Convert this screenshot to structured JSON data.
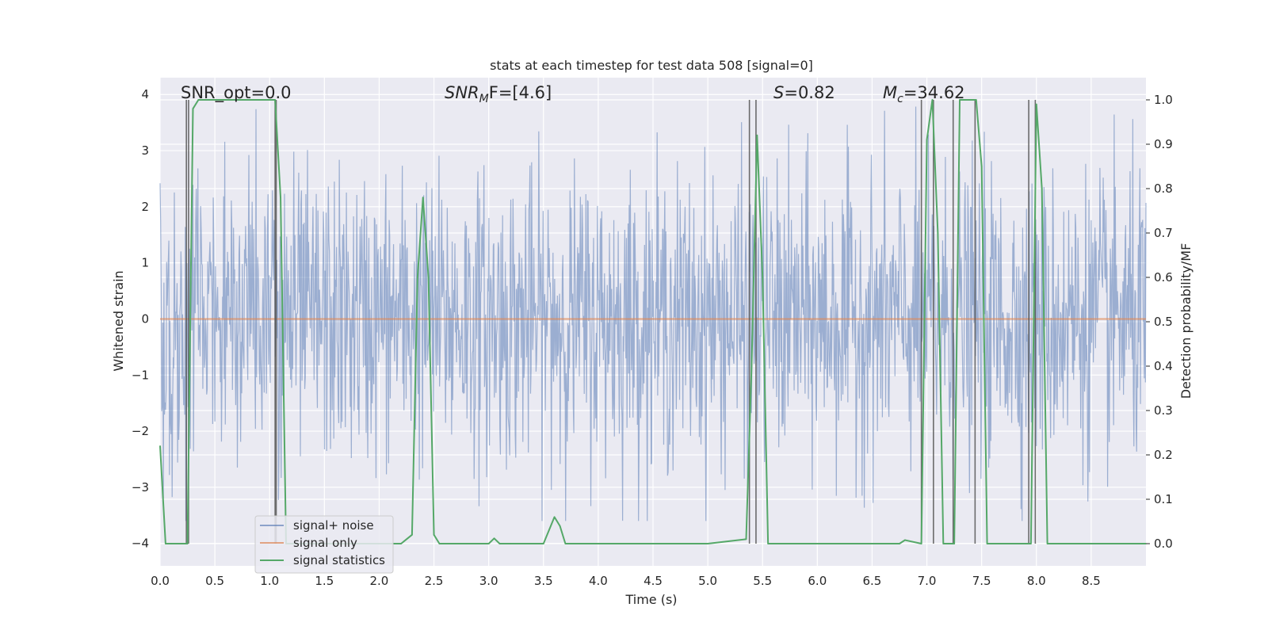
{
  "chart_data": {
    "type": "line",
    "title": "stats at each timestep for test data 508 [signal=0]",
    "xlabel": "Time (s)",
    "ylabel": "Whitened strain",
    "y2label": "Detection probability/MF",
    "xlim": [
      0.0,
      9.0
    ],
    "ylim": [
      -4.4,
      4.3
    ],
    "y2lim": [
      -0.05,
      1.05
    ],
    "xticks": [
      "0.0",
      "0.5",
      "1.0",
      "1.5",
      "2.0",
      "2.5",
      "3.0",
      "3.5",
      "4.0",
      "4.5",
      "5.0",
      "5.5",
      "6.0",
      "6.5",
      "7.0",
      "7.5",
      "8.0",
      "8.5"
    ],
    "yticks": [
      "−4",
      "−3",
      "−2",
      "−1",
      "0",
      "1",
      "2",
      "3",
      "4"
    ],
    "y2ticks": [
      "0.0",
      "0.1",
      "0.2",
      "0.3",
      "0.4",
      "0.5",
      "0.6",
      "0.7",
      "0.8",
      "0.9",
      "1.0"
    ],
    "grid": true,
    "legend_position": "lower-left",
    "annotations": {
      "snr_opt": "SNR_opt=0.0",
      "snr_mf_base": "SNR",
      "snr_mf_sub": "M",
      "snr_mf_tail": "F=[4.6]",
      "s_label": "S",
      "s_value": "=0.82",
      "mc_base": "M",
      "mc_sub": "c",
      "mc_value": "=34.62"
    },
    "series": [
      {
        "name": "signal+ noise",
        "color": "#4c72b0",
        "noise_band_typical": [
          -1.7,
          1.7
        ],
        "noise_extremes": [
          -3.6,
          3.9
        ]
      },
      {
        "name": "signal only",
        "color": "#dd8452",
        "values_constant": 0.0
      },
      {
        "name": "signal statistics",
        "color": "#55a868",
        "x": [
          0.0,
          0.05,
          0.1,
          0.15,
          0.2,
          0.25,
          0.3,
          0.35,
          0.4,
          0.5,
          0.6,
          0.7,
          0.8,
          0.9,
          1.0,
          1.05,
          1.1,
          1.15,
          1.2,
          1.25,
          1.3,
          1.4,
          1.5,
          2.0,
          2.2,
          2.3,
          2.35,
          2.4,
          2.45,
          2.5,
          2.55,
          2.6,
          2.7,
          2.8,
          3.0,
          3.05,
          3.1,
          3.2,
          3.5,
          3.55,
          3.6,
          3.65,
          3.7,
          3.75,
          3.8,
          4.0,
          5.0,
          5.35,
          5.4,
          5.45,
          5.5,
          5.55,
          5.6,
          6.0,
          6.5,
          6.75,
          6.8,
          6.95,
          7.0,
          7.05,
          7.1,
          7.15,
          7.2,
          7.25,
          7.3,
          7.35,
          7.4,
          7.45,
          7.5,
          7.55,
          7.6,
          7.9,
          7.95,
          8.0,
          8.05,
          8.1,
          8.15,
          8.2,
          8.4,
          8.6,
          8.8,
          9.0
        ],
        "values": [
          0.22,
          0.0,
          0.0,
          0.0,
          0.0,
          0.0,
          0.98,
          1.0,
          1.0,
          1.0,
          1.0,
          1.0,
          1.0,
          1.0,
          1.0,
          1.0,
          0.78,
          0.0,
          0.0,
          0.0,
          0.0,
          0.0,
          0.0,
          0.0,
          0.0,
          0.02,
          0.6,
          0.78,
          0.6,
          0.02,
          0.0,
          0.0,
          0.0,
          0.0,
          0.0,
          0.012,
          0.0,
          0.0,
          0.0,
          0.03,
          0.06,
          0.04,
          0.0,
          0.0,
          0.0,
          0.0,
          0.0,
          0.01,
          0.4,
          0.92,
          0.6,
          0.0,
          0.0,
          0.0,
          0.0,
          0.0,
          0.008,
          0.0,
          0.91,
          1.0,
          0.7,
          0.0,
          0.0,
          0.0,
          1.0,
          1.0,
          1.0,
          1.0,
          0.85,
          0.0,
          0.0,
          0.0,
          0.0,
          0.99,
          0.8,
          0.0,
          0.0,
          0.0,
          0.0,
          0.0,
          0.0,
          0.0
        ]
      }
    ],
    "vertical_markers_x": [
      0.24,
      0.26,
      1.05,
      1.06,
      5.38,
      5.44,
      6.95,
      7.06,
      7.24,
      7.44,
      7.93,
      7.99
    ]
  }
}
